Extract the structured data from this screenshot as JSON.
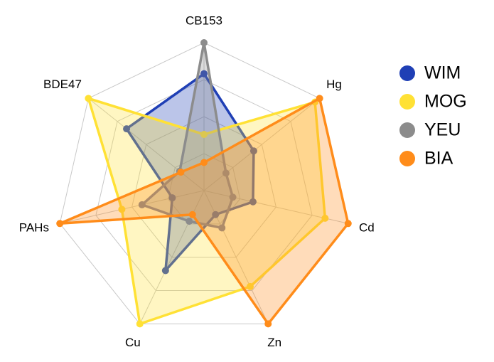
{
  "chart_data": {
    "type": "radar",
    "categories": [
      "CB153",
      "Hg",
      "Cd",
      "Zn",
      "Cu",
      "PAHs",
      "BDE47"
    ],
    "rlim": [
      0,
      1
    ],
    "rticks": [
      0.25,
      0.5,
      0.75,
      1
    ],
    "grid": true,
    "legend": "right",
    "series": [
      {
        "name": "WIM",
        "color": "#1f3fb5",
        "values": [
          0.79,
          0.43,
          0.34,
          0.18,
          0.6,
          0.22,
          0.67
        ]
      },
      {
        "name": "MOG",
        "color": "#ffe135",
        "values": [
          0.38,
          0.96,
          0.84,
          0.72,
          1.0,
          0.57,
          1.0
        ]
      },
      {
        "name": "YEU",
        "color": "#8c8c8c",
        "values": [
          1.0,
          0.19,
          0.2,
          0.28,
          0.23,
          0.43,
          0.21
        ]
      },
      {
        "name": "BIA",
        "color": "#ff8c1a",
        "values": [
          0.19,
          1.0,
          1.0,
          1.0,
          0.18,
          1.0,
          0.2
        ]
      }
    ]
  }
}
